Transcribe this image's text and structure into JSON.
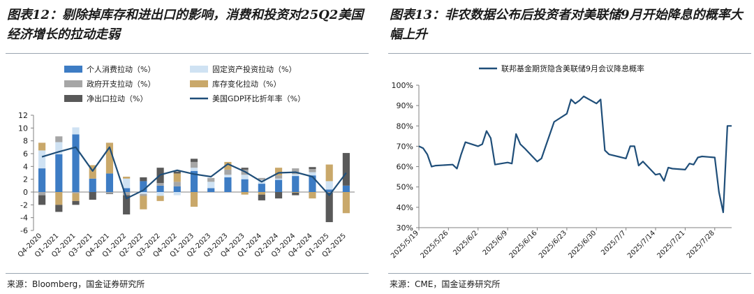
{
  "left": {
    "title": "图表12：剔除掉库存和进出口的影响，消费和投资对25Q2美国经济增长的拉动走弱",
    "source": "来源：Bloomberg，国金证券研究所"
  },
  "right": {
    "title": "图表13：非农数据公布后投资者对美联储9月开始降息的概率大幅上升",
    "source": "来源：CME，国金证券研究所"
  },
  "chart_data": [
    {
      "type": "bar",
      "stacked": true,
      "categories": [
        "Q4-2020",
        "Q1-2021",
        "Q2-2021",
        "Q3-2021",
        "Q4-2021",
        "Q1-2022",
        "Q2-2022",
        "Q3-2022",
        "Q4-2022",
        "Q1-2023",
        "Q2-2023",
        "Q3-2023",
        "Q4-2023",
        "Q1-2024",
        "Q2-2024",
        "Q3-2024",
        "Q4-2024",
        "Q1-2025",
        "Q2-2025"
      ],
      "tick_labels": [
        "Q4-2020",
        "Q1-2021",
        "Q2-2021",
        "Q3-2021",
        "Q4-2021",
        "Q1-2022",
        "Q2-2022",
        "Q3-2022",
        "Q4-2022",
        "Q1-2023",
        "Q2-2023",
        "Q3-2023",
        "Q4-2023",
        "Q1-2024",
        "Q2-2024",
        "Q3-2024",
        "Q4-2024",
        "Q1-2025",
        "Q2-2025"
      ],
      "ylim": [
        -6,
        12
      ],
      "yticks": [
        -6,
        -4,
        -2,
        0,
        2,
        4,
        6,
        8,
        10,
        12
      ],
      "grid": false,
      "legend_position": "top",
      "series": [
        {
          "name": "个人消费拉动（%）",
          "kind": "bar",
          "color": "#3d7cc4",
          "values": [
            3.7,
            5.9,
            9.0,
            2.1,
            2.9,
            0.6,
            1.7,
            1.0,
            0.9,
            3.3,
            0.6,
            2.3,
            2.0,
            1.3,
            1.9,
            2.5,
            2.6,
            0.4,
            1.0
          ]
        },
        {
          "name": "固定资产投资拉动（%）",
          "kind": "bar",
          "color": "#cfe2f3",
          "values": [
            2.8,
            1.9,
            1.1,
            0.0,
            0.0,
            1.5,
            -0.3,
            -0.6,
            -0.5,
            0.5,
            1.0,
            0.4,
            0.7,
            0.6,
            0.2,
            0.3,
            0.5,
            1.3,
            0.0
          ]
        },
        {
          "name": "政府开支拉动（%）",
          "kind": "bar",
          "color": "#a6a6a6",
          "values": [
            -0.5,
            0.9,
            -0.2,
            0.0,
            -0.2,
            -0.5,
            -0.3,
            0.4,
            0.7,
            0.9,
            0.6,
            0.8,
            0.8,
            0.3,
            0.5,
            0.9,
            0.5,
            -0.1,
            0.0
          ]
        },
        {
          "name": "库存变化拉动（%）",
          "kind": "bar",
          "color": "#c9a86a",
          "values": [
            1.2,
            -2.0,
            -1.2,
            2.1,
            4.8,
            0.3,
            -2.1,
            -0.8,
            1.3,
            -2.3,
            0.0,
            1.2,
            -0.4,
            -0.4,
            1.2,
            -0.1,
            -1.0,
            2.6,
            -3.3
          ]
        },
        {
          "name": "净出口拉动（%）",
          "kind": "bar",
          "color": "#595959",
          "values": [
            -1.5,
            -1.1,
            -0.6,
            -1.2,
            -0.1,
            -3.0,
            0.6,
            2.4,
            0.3,
            0.5,
            0.0,
            0.0,
            0.3,
            -0.9,
            -1.0,
            -0.4,
            0.3,
            -4.6,
            5.1
          ]
        },
        {
          "name": "美国GDP环比折年率（%）",
          "kind": "line",
          "color": "#1f4e79",
          "values": [
            5.5,
            6.3,
            7.0,
            3.3,
            7.0,
            -1.0,
            0.3,
            2.7,
            3.4,
            2.8,
            2.4,
            4.4,
            3.2,
            1.6,
            3.0,
            3.1,
            2.4,
            -0.5,
            3.0
          ]
        }
      ]
    },
    {
      "type": "line",
      "x_tick_labels": [
        "2025/5/19",
        "2025/5/26",
        "2025/6/2",
        "2025/6/9",
        "2025/6/16",
        "2025/6/23",
        "2025/6/30",
        "2025/7/7",
        "2025/7/14",
        "2025/7/21",
        "2025/7/28"
      ],
      "ylim": [
        30,
        100
      ],
      "yticks": [
        30,
        40,
        50,
        60,
        70,
        80,
        90,
        100
      ],
      "y_tick_format": "percent",
      "grid": false,
      "legend_position": "top",
      "series": [
        {
          "name": "联邦基金期货隐含美联储9月会议降息概率",
          "color": "#1f4e79",
          "x": [
            "2025-05-19",
            "2025-05-20",
            "2025-05-21",
            "2025-05-22",
            "2025-05-23",
            "2025-05-27",
            "2025-05-28",
            "2025-05-29",
            "2025-05-30",
            "2025-06-02",
            "2025-06-03",
            "2025-06-04",
            "2025-06-05",
            "2025-06-06",
            "2025-06-09",
            "2025-06-10",
            "2025-06-11",
            "2025-06-12",
            "2025-06-13",
            "2025-06-16",
            "2025-06-17",
            "2025-06-18",
            "2025-06-20",
            "2025-06-23",
            "2025-06-24",
            "2025-06-25",
            "2025-06-26",
            "2025-06-27",
            "2025-06-30",
            "2025-07-01",
            "2025-07-02",
            "2025-07-03",
            "2025-07-07",
            "2025-07-08",
            "2025-07-09",
            "2025-07-10",
            "2025-07-11",
            "2025-07-14",
            "2025-07-15",
            "2025-07-16",
            "2025-07-17",
            "2025-07-18",
            "2025-07-21",
            "2025-07-22",
            "2025-07-23",
            "2025-07-24",
            "2025-07-25",
            "2025-07-28",
            "2025-07-29",
            "2025-07-30",
            "2025-07-31",
            "2025-08-01"
          ],
          "values": [
            70,
            69,
            66,
            60,
            60.5,
            61,
            59,
            66,
            72,
            70,
            71,
            77.5,
            74,
            61,
            62,
            61.5,
            76,
            71,
            69,
            62.5,
            64,
            70,
            82,
            86,
            93,
            91,
            92.5,
            94.5,
            91,
            93,
            68,
            66,
            64,
            70,
            70,
            60.5,
            62.5,
            56,
            56.5,
            53,
            59.5,
            59,
            58.5,
            61.5,
            61,
            64.5,
            65,
            64.5,
            47.5,
            37.5,
            80,
            80
          ]
        }
      ]
    }
  ]
}
